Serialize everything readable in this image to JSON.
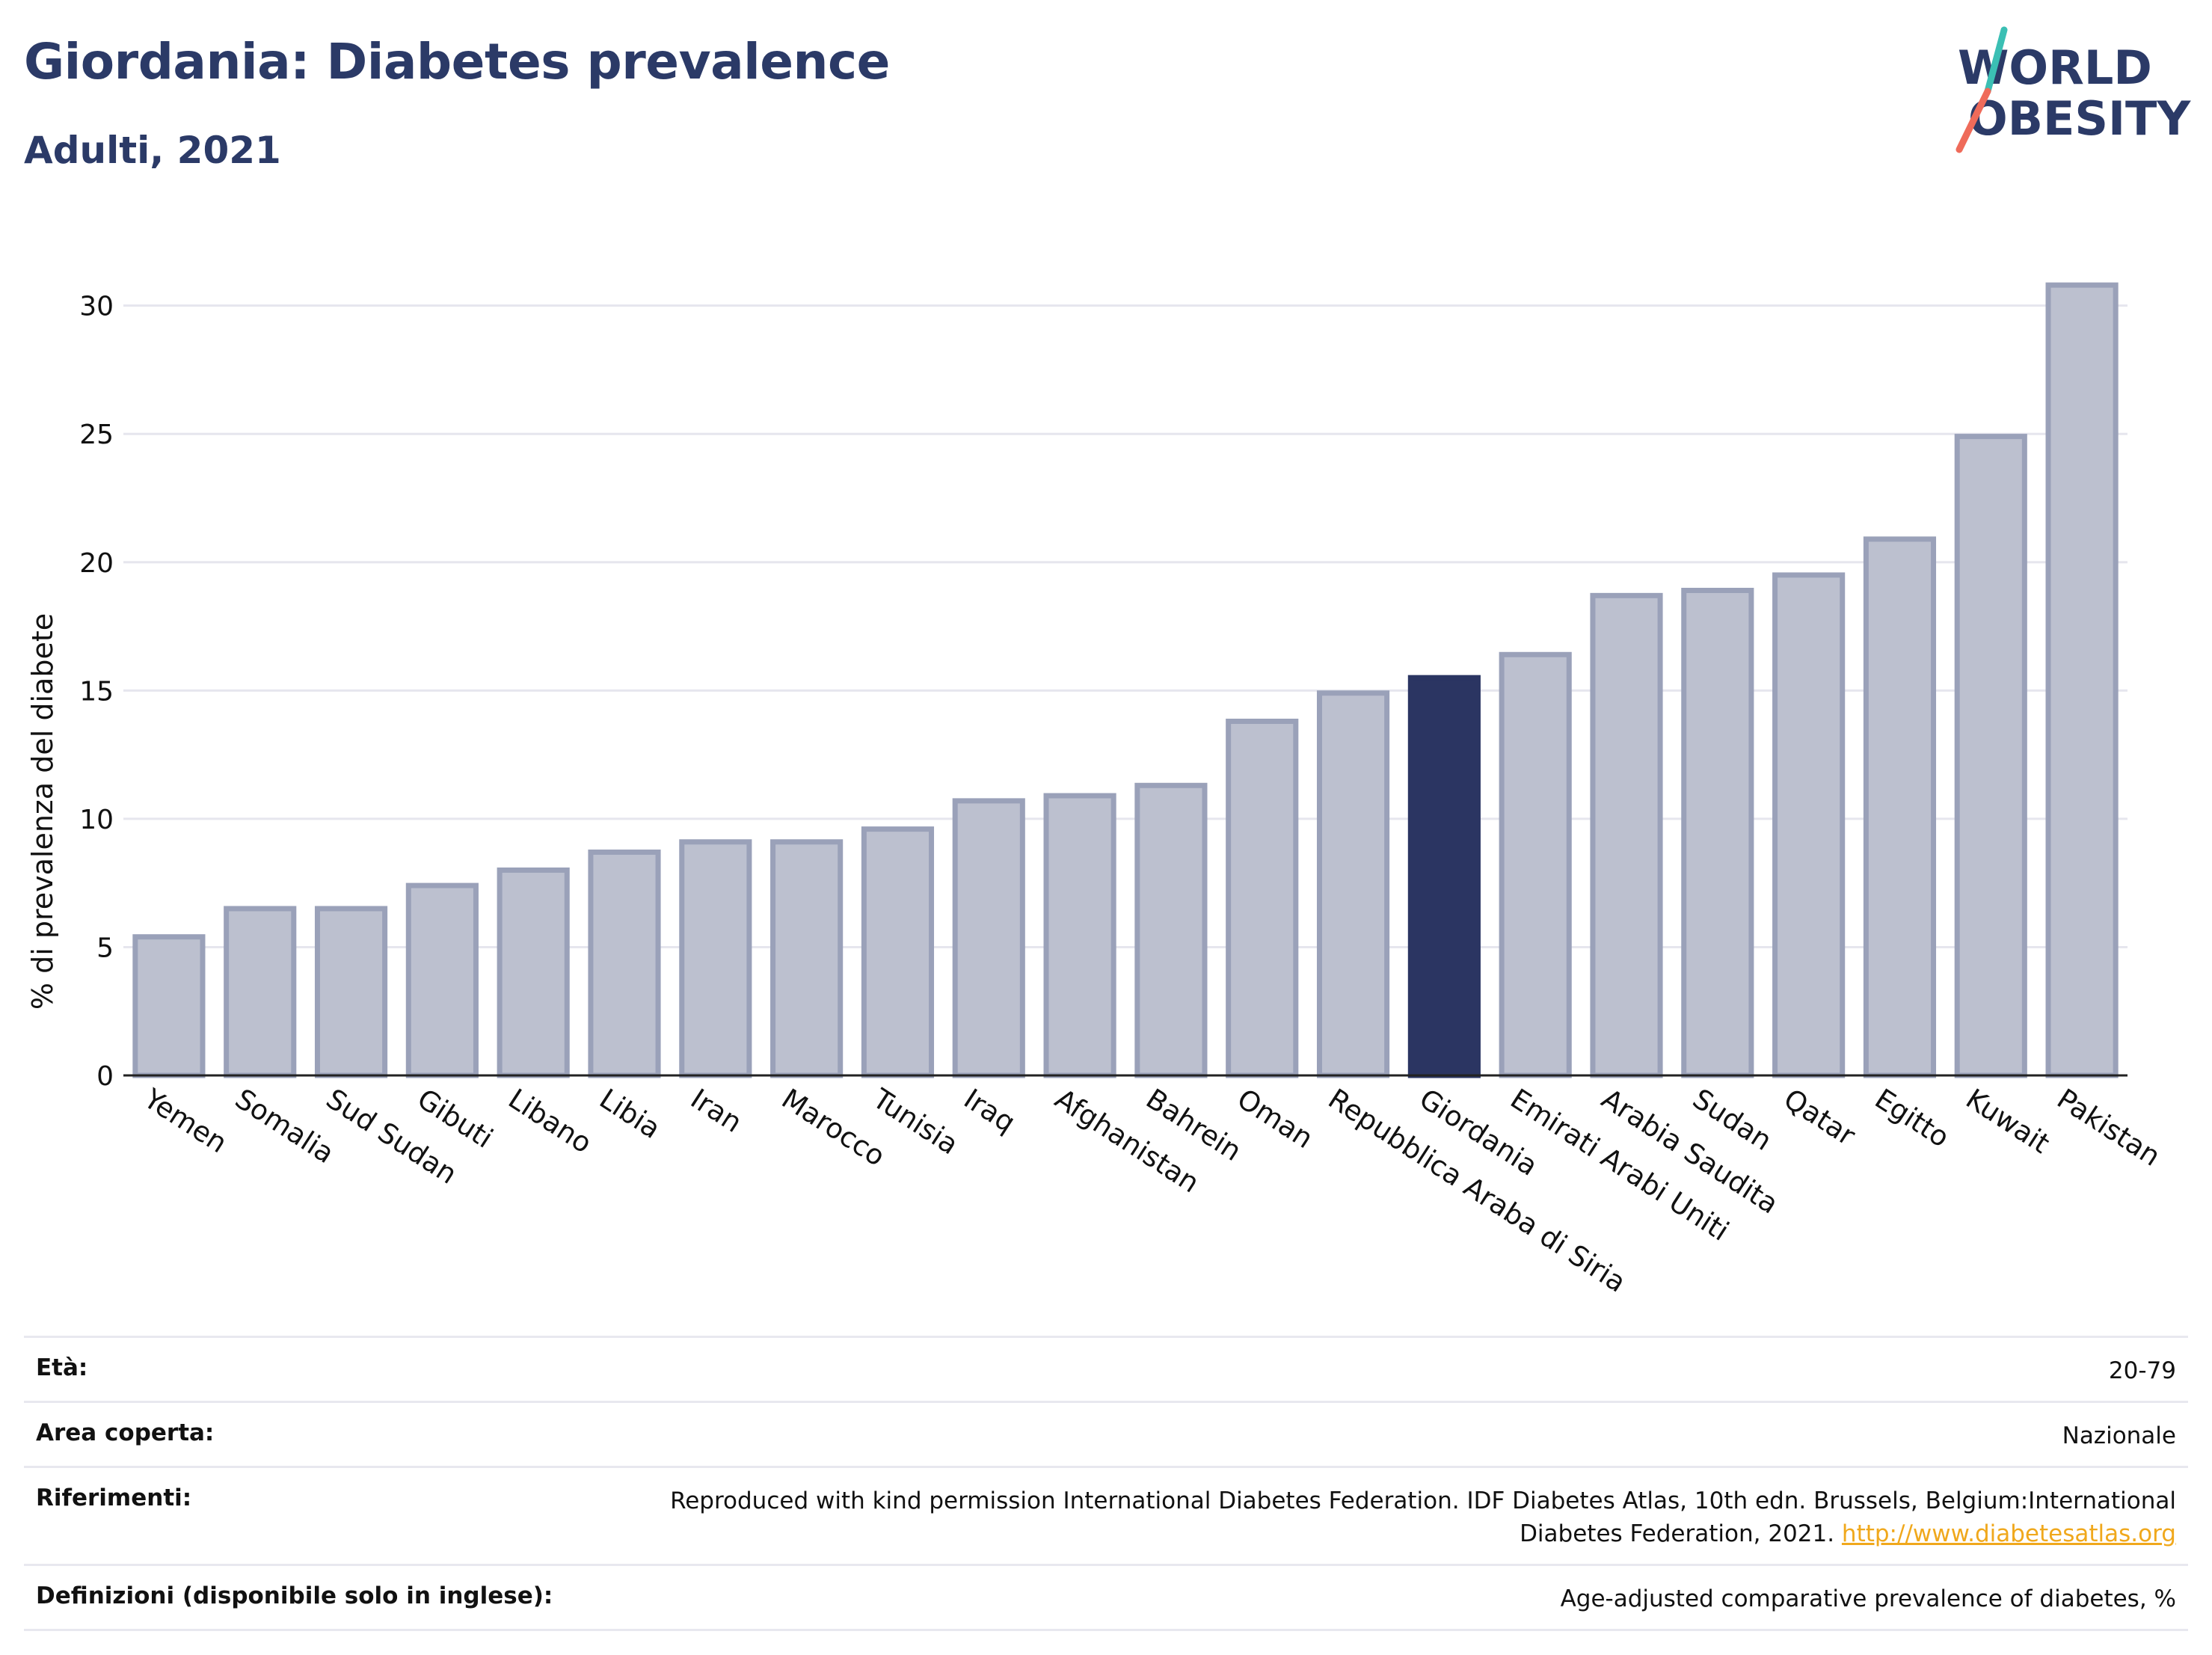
{
  "header": {
    "title": "Giordania: Diabetes prevalence",
    "subtitle": "Adulti, 2021",
    "logo_line1": "WORLD",
    "logo_line2": "OBESITY"
  },
  "colors": {
    "title": "#2b3a67",
    "bar": "#bcc0cf",
    "bar_border": "#9aa1b9",
    "highlight": "#2b3562",
    "grid": "#e6e6ee",
    "logo_teal": "#3bbfb4",
    "logo_coral": "#ef6b5a"
  },
  "chart_data": {
    "type": "bar",
    "ylabel": "% di prevalenza del diabete",
    "ylim": [
      0,
      32
    ],
    "yticks": [
      0,
      5,
      10,
      15,
      20,
      25,
      30
    ],
    "grid": true,
    "highlight": "Giordania",
    "categories": [
      "Yemen",
      "Somalia",
      "Sud Sudan",
      "Gibuti",
      "Libano",
      "Libia",
      "Iran",
      "Marocco",
      "Tunisia",
      "Iraq",
      "Afghanistan",
      "Bahrein",
      "Oman",
      "Repubblica Araba di Siria",
      "Giordania",
      "Emirati Arabi Uniti",
      "Arabia Saudita",
      "Sudan",
      "Qatar",
      "Egitto",
      "Kuwait",
      "Pakistan"
    ],
    "values": [
      5.4,
      6.5,
      6.5,
      7.4,
      8.0,
      8.7,
      9.1,
      9.1,
      9.6,
      10.7,
      10.9,
      11.3,
      13.8,
      14.9,
      15.5,
      16.4,
      18.7,
      18.9,
      19.5,
      20.9,
      24.9,
      30.8
    ]
  },
  "meta": [
    {
      "label": "Età:",
      "value": "20-79"
    },
    {
      "label": "Area coperta:",
      "value": "Nazionale"
    },
    {
      "label": "Riferimenti:",
      "value_line1": "Reproduced with kind permission International Diabetes Federation.  IDF Diabetes Atlas, 10th edn. Brussels, Belgium:International",
      "value_line2": "Diabetes Federation, 2021.",
      "link": "http://www.diabetesatlas.org"
    },
    {
      "label": "Definizioni (disponibile solo in inglese):",
      "value": "Age-adjusted comparative prevalence of diabetes, %"
    }
  ]
}
